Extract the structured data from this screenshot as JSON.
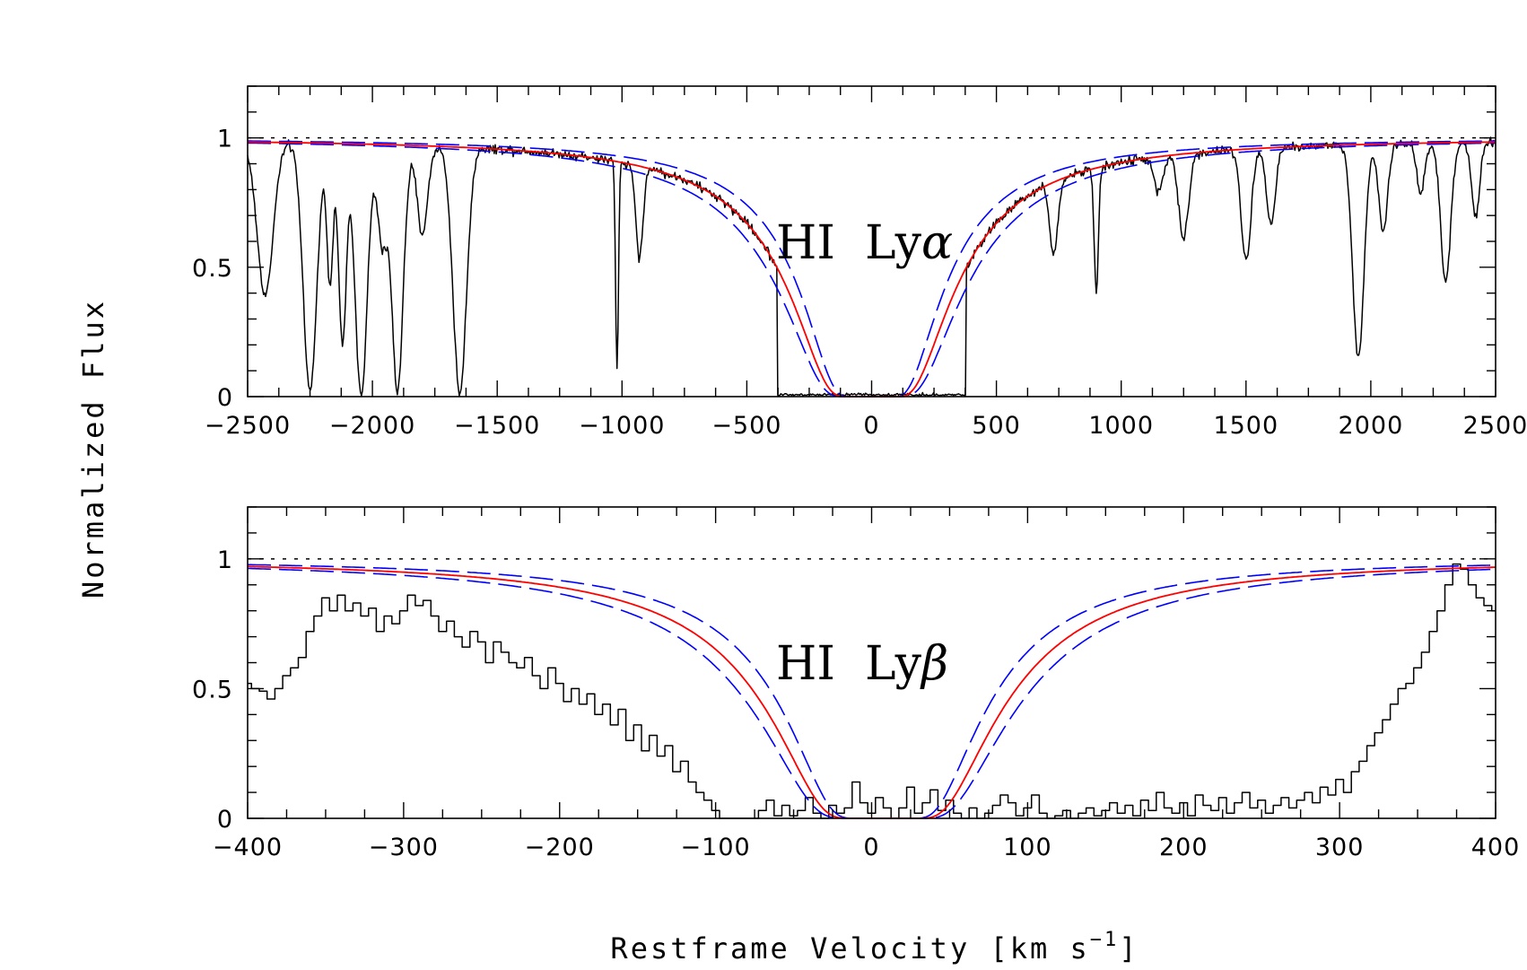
{
  "chart_data": {
    "ylabel": "Normalized Flux",
    "xlabel": "Restframe Velocity [km s",
    "xlabel_exp": "−1",
    "xlabel_close": "]",
    "colors": {
      "data": "#000000",
      "model": "#ff0000",
      "model_bounds": "#0000ff",
      "continuum": "#000000"
    },
    "panels": [
      {
        "type": "line",
        "label_main": "HI  Ly",
        "label_greek": "α",
        "xlim": [
          -2500,
          2500
        ],
        "ylim": [
          0,
          1.2
        ],
        "continuum": 1,
        "xticks": [
          -2500,
          -2000,
          -1500,
          -1000,
          -500,
          0,
          500,
          1000,
          1500,
          2000,
          2500
        ],
        "xticklabels": [
          "−2500",
          "−2000",
          "−1500",
          "−1000",
          "−500",
          "0",
          "500",
          "1000",
          "1500",
          "2000",
          "2500"
        ],
        "yticks": [
          0,
          0.5,
          1
        ],
        "yticklabels": [
          "0",
          "0.5",
          "1"
        ],
        "model": {
          "type": "damped",
          "center": 0,
          "tau_scale": 100000,
          "width_offset": 0,
          "bound_delta": 0.25
        },
        "spectrum": {
          "style": "line",
          "step": 4,
          "noise": 0.013,
          "dark_range": [
            -380,
            380
          ],
          "absorbers": [
            {
              "v": -2430,
              "d": 0.6,
              "w": 45
            },
            {
              "v": -2250,
              "d": 0.98,
              "w": 38
            },
            {
              "v": -2170,
              "d": 0.55,
              "w": 18
            },
            {
              "v": -2120,
              "d": 0.8,
              "w": 22
            },
            {
              "v": -2045,
              "d": 0.99,
              "w": 35
            },
            {
              "v": -1960,
              "d": 0.4,
              "w": 28
            },
            {
              "v": -1900,
              "d": 0.98,
              "w": 33
            },
            {
              "v": -1800,
              "d": 0.35,
              "w": 30
            },
            {
              "v": -1650,
              "d": 0.99,
              "w": 38
            },
            {
              "v": -1020,
              "d": 0.9,
              "w": 8
            },
            {
              "v": -930,
              "d": 0.4,
              "w": 20
            },
            {
              "v": 730,
              "d": 0.35,
              "w": 22
            },
            {
              "v": 900,
              "d": 0.55,
              "w": 12
            },
            {
              "v": 1150,
              "d": 0.15,
              "w": 25
            },
            {
              "v": 1250,
              "d": 0.35,
              "w": 28
            },
            {
              "v": 1500,
              "d": 0.45,
              "w": 28
            },
            {
              "v": 1600,
              "d": 0.3,
              "w": 25
            },
            {
              "v": 1950,
              "d": 0.85,
              "w": 32
            },
            {
              "v": 2050,
              "d": 0.35,
              "w": 25
            },
            {
              "v": 2200,
              "d": 0.2,
              "w": 22
            },
            {
              "v": 2300,
              "d": 0.55,
              "w": 28
            },
            {
              "v": 2420,
              "d": 0.3,
              "w": 22
            }
          ]
        }
      },
      {
        "type": "line",
        "label_main": "HI  Ly",
        "label_greek": "β",
        "xlim": [
          -400,
          400
        ],
        "ylim": [
          0,
          1.2
        ],
        "continuum": 1,
        "xticks": [
          -400,
          -300,
          -200,
          -100,
          0,
          100,
          200,
          300,
          400
        ],
        "xticklabels": [
          "−400",
          "−300",
          "−200",
          "−100",
          "0",
          "100",
          "200",
          "300",
          "400"
        ],
        "yticks": [
          0,
          0.5,
          1
        ],
        "yticklabels": [
          "0",
          "0.5",
          "1"
        ],
        "model": {
          "type": "damped",
          "center": 8,
          "tau_scale": 5000,
          "width_offset": 0,
          "bound_delta": 0.25
        },
        "spectrum": {
          "style": "step",
          "points": [
            [
              -400,
              0.52
            ],
            [
              -395,
              0.5
            ],
            [
              -390,
              0.49
            ],
            [
              -385,
              0.46
            ],
            [
              -380,
              0.5
            ],
            [
              -375,
              0.55
            ],
            [
              -370,
              0.58
            ],
            [
              -365,
              0.62
            ],
            [
              -360,
              0.72
            ],
            [
              -355,
              0.78
            ],
            [
              -350,
              0.85
            ],
            [
              -345,
              0.8
            ],
            [
              -340,
              0.86
            ],
            [
              -335,
              0.8
            ],
            [
              -330,
              0.83
            ],
            [
              -325,
              0.78
            ],
            [
              -320,
              0.81
            ],
            [
              -315,
              0.72
            ],
            [
              -310,
              0.78
            ],
            [
              -305,
              0.75
            ],
            [
              -300,
              0.8
            ],
            [
              -295,
              0.86
            ],
            [
              -290,
              0.82
            ],
            [
              -285,
              0.84
            ],
            [
              -280,
              0.78
            ],
            [
              -275,
              0.72
            ],
            [
              -270,
              0.76
            ],
            [
              -265,
              0.7
            ],
            [
              -260,
              0.66
            ],
            [
              -255,
              0.72
            ],
            [
              -250,
              0.68
            ],
            [
              -245,
              0.6
            ],
            [
              -240,
              0.68
            ],
            [
              -235,
              0.64
            ],
            [
              -230,
              0.6
            ],
            [
              -225,
              0.58
            ],
            [
              -220,
              0.62
            ],
            [
              -215,
              0.55
            ],
            [
              -210,
              0.5
            ],
            [
              -205,
              0.58
            ],
            [
              -200,
              0.52
            ],
            [
              -195,
              0.45
            ],
            [
              -190,
              0.5
            ],
            [
              -185,
              0.44
            ],
            [
              -180,
              0.48
            ],
            [
              -175,
              0.4
            ],
            [
              -170,
              0.44
            ],
            [
              -165,
              0.36
            ],
            [
              -160,
              0.42
            ],
            [
              -155,
              0.3
            ],
            [
              -150,
              0.36
            ],
            [
              -145,
              0.26
            ],
            [
              -140,
              0.32
            ],
            [
              -135,
              0.24
            ],
            [
              -130,
              0.28
            ],
            [
              -125,
              0.18
            ],
            [
              -120,
              0.22
            ],
            [
              -115,
              0.14
            ],
            [
              -110,
              0.1
            ],
            [
              -105,
              0.07
            ],
            [
              -100,
              0.03
            ],
            [
              -95,
              0
            ],
            [
              -90,
              0
            ],
            [
              -85,
              0
            ],
            [
              -80,
              0
            ],
            [
              -75,
              0
            ],
            [
              -70,
              0.03
            ],
            [
              -65,
              0.07
            ],
            [
              -60,
              0.01
            ],
            [
              -55,
              0.05
            ],
            [
              -50,
              0.01
            ],
            [
              -45,
              0.03
            ],
            [
              -40,
              0.08
            ],
            [
              -35,
              0.02
            ],
            [
              -30,
              0
            ],
            [
              -25,
              0.05
            ],
            [
              -20,
              0.02
            ],
            [
              -15,
              0.04
            ],
            [
              -10,
              0.14
            ],
            [
              -5,
              0.06
            ],
            [
              0,
              0.02
            ],
            [
              5,
              0.08
            ],
            [
              10,
              0.04
            ],
            [
              15,
              0
            ],
            [
              20,
              0.04
            ],
            [
              25,
              0.12
            ],
            [
              30,
              0.02
            ],
            [
              35,
              0.06
            ],
            [
              40,
              0.11
            ],
            [
              45,
              0.03
            ],
            [
              50,
              0.07
            ],
            [
              55,
              0.02
            ],
            [
              60,
              0
            ],
            [
              65,
              0.04
            ],
            [
              70,
              0
            ],
            [
              75,
              0.02
            ],
            [
              80,
              0.05
            ],
            [
              85,
              0.09
            ],
            [
              90,
              0.06
            ],
            [
              95,
              0.01
            ],
            [
              100,
              0.04
            ],
            [
              105,
              0.09
            ],
            [
              110,
              0.02
            ],
            [
              115,
              0
            ],
            [
              120,
              0.01
            ],
            [
              125,
              0.03
            ],
            [
              130,
              0
            ],
            [
              135,
              0.02
            ],
            [
              140,
              0.04
            ],
            [
              145,
              0.01
            ],
            [
              150,
              0.03
            ],
            [
              155,
              0.06
            ],
            [
              160,
              0.02
            ],
            [
              165,
              0.05
            ],
            [
              170,
              0.01
            ],
            [
              175,
              0.07
            ],
            [
              180,
              0.03
            ],
            [
              185,
              0.1
            ],
            [
              190,
              0.04
            ],
            [
              195,
              0.02
            ],
            [
              200,
              0.06
            ],
            [
              205,
              0.01
            ],
            [
              210,
              0.09
            ],
            [
              215,
              0.05
            ],
            [
              220,
              0.03
            ],
            [
              225,
              0.08
            ],
            [
              230,
              0.02
            ],
            [
              235,
              0.06
            ],
            [
              240,
              0.1
            ],
            [
              245,
              0.04
            ],
            [
              250,
              0.07
            ],
            [
              255,
              0.02
            ],
            [
              260,
              0.05
            ],
            [
              265,
              0.08
            ],
            [
              270,
              0.04
            ],
            [
              275,
              0.07
            ],
            [
              280,
              0.1
            ],
            [
              285,
              0.06
            ],
            [
              290,
              0.12
            ],
            [
              295,
              0.09
            ],
            [
              300,
              0.15
            ],
            [
              305,
              0.1
            ],
            [
              310,
              0.18
            ],
            [
              315,
              0.22
            ],
            [
              320,
              0.28
            ],
            [
              325,
              0.33
            ],
            [
              330,
              0.38
            ],
            [
              335,
              0.44
            ],
            [
              340,
              0.5
            ],
            [
              345,
              0.52
            ],
            [
              350,
              0.58
            ],
            [
              355,
              0.64
            ],
            [
              360,
              0.72
            ],
            [
              365,
              0.8
            ],
            [
              370,
              0.9
            ],
            [
              375,
              0.98
            ],
            [
              380,
              0.96
            ],
            [
              385,
              0.9
            ],
            [
              390,
              0.85
            ],
            [
              395,
              0.82
            ],
            [
              400,
              0.8
            ]
          ]
        }
      }
    ]
  }
}
